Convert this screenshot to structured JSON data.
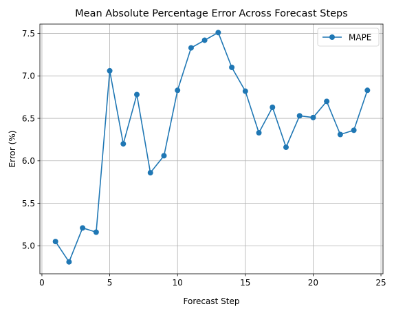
{
  "chart_data": {
    "type": "line",
    "title": "Mean Absolute Percentage Error Across Forecast Steps",
    "xlabel": "Forecast Step",
    "ylabel": "Error (%)",
    "xlim": [
      -0.15,
      25.15
    ],
    "ylim": [
      4.67,
      7.61
    ],
    "xticks": [
      0,
      5,
      10,
      15,
      20,
      25
    ],
    "yticks": [
      5.0,
      5.5,
      6.0,
      6.5,
      7.0,
      7.5
    ],
    "xtick_labels": [
      "0",
      "5",
      "10",
      "15",
      "20",
      "25"
    ],
    "ytick_labels": [
      "5.0",
      "5.5",
      "6.0",
      "6.5",
      "7.0",
      "7.5"
    ],
    "grid": true,
    "legend_position": "top-right",
    "series": [
      {
        "name": "MAPE",
        "color": "#1f77b4",
        "marker": "circle",
        "x": [
          1,
          2,
          3,
          4,
          5,
          6,
          7,
          8,
          9,
          10,
          11,
          12,
          13,
          14,
          15,
          16,
          17,
          18,
          19,
          20,
          21,
          22,
          23,
          24
        ],
        "y": [
          5.05,
          4.81,
          5.21,
          5.16,
          7.06,
          6.2,
          6.78,
          5.86,
          6.06,
          6.83,
          7.33,
          7.42,
          7.51,
          7.1,
          6.82,
          6.33,
          6.63,
          6.16,
          6.53,
          6.51,
          6.7,
          6.31,
          6.36,
          6.83
        ]
      }
    ]
  }
}
